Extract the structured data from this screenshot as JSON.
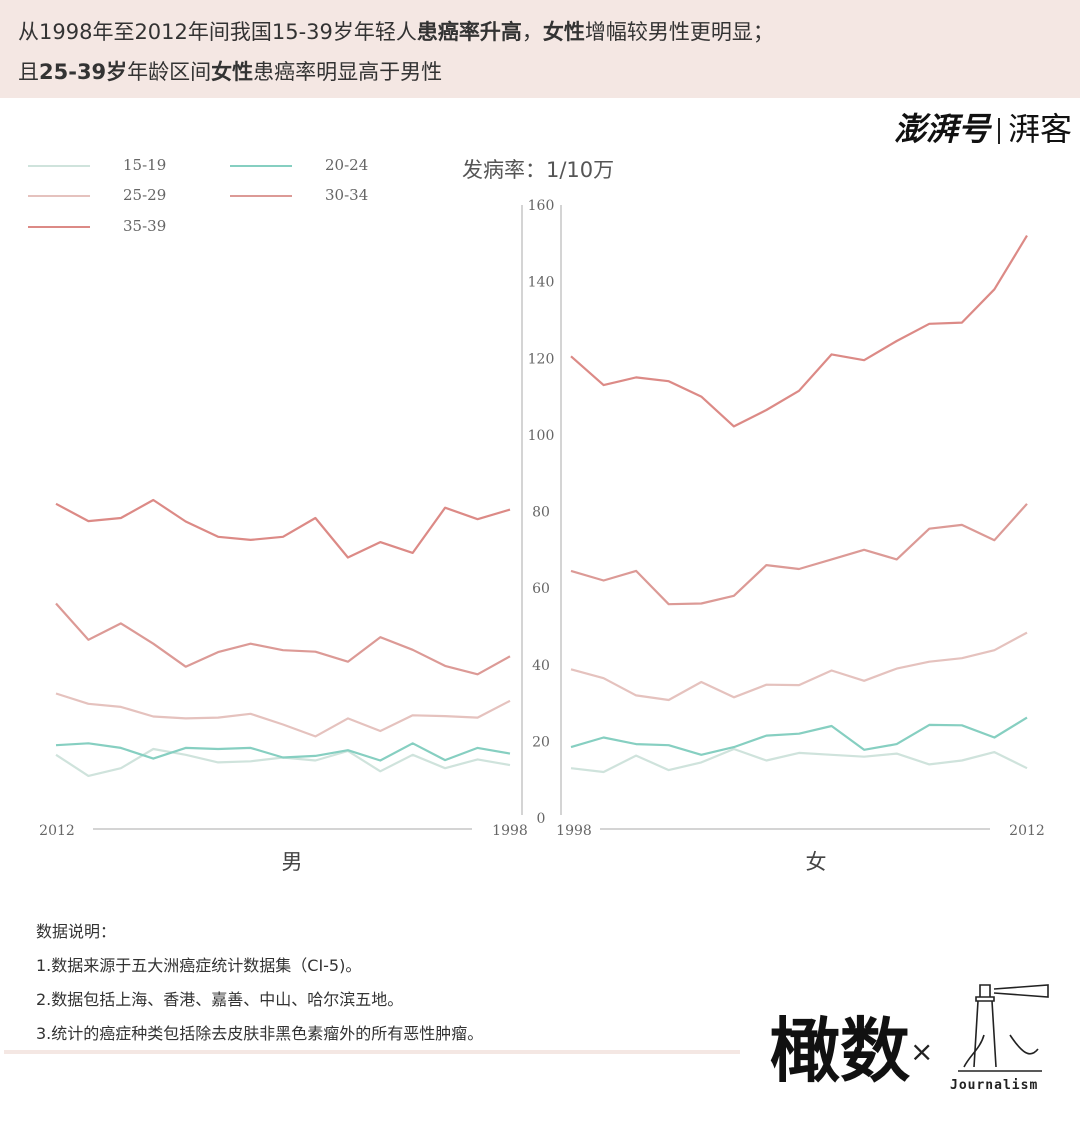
{
  "header": {
    "line1": [
      {
        "text": "从1998年至2012年间我国15-39岁年轻人",
        "bold": false
      },
      {
        "text": "患癌率升高",
        "bold": true
      },
      {
        "text": "，",
        "bold": false
      },
      {
        "text": "女性",
        "bold": true
      },
      {
        "text": "增幅较男性更明显；",
        "bold": false
      }
    ],
    "line2": [
      {
        "text": "且",
        "bold": false
      },
      {
        "text": "25-39岁",
        "bold": true
      },
      {
        "text": "年龄区间",
        "bold": false
      },
      {
        "text": "女性",
        "bold": true
      },
      {
        "text": "患癌率明显高于男性",
        "bold": false
      }
    ]
  },
  "brand": {
    "main": "澎湃号",
    "sub": "湃客"
  },
  "unit_label": "发病率：1/10万",
  "chart_data": {
    "type": "line",
    "y_ticks": [
      0,
      20,
      40,
      60,
      80,
      100,
      120,
      140,
      160
    ],
    "ylim": [
      0,
      160
    ],
    "series_meta": [
      {
        "name": "15-19",
        "color": "#cfe3dc"
      },
      {
        "name": "20-24",
        "color": "#86cfc1"
      },
      {
        "name": "25-29",
        "color": "#e5c2be"
      },
      {
        "name": "30-34",
        "color": "#dc9a96"
      },
      {
        "name": "35-39",
        "color": "#dc8a86"
      }
    ],
    "male": {
      "label": "男",
      "x": [
        2012,
        2011,
        2010,
        2009,
        2008,
        2007,
        2006,
        2005,
        2004,
        2003,
        2002,
        2001,
        2000,
        1999,
        1998
      ],
      "x_labels": [
        "2012",
        "1998"
      ],
      "series": [
        {
          "name": "15-19",
          "values": [
            16.5,
            11,
            13,
            18,
            16.5,
            14.5,
            14.8,
            15.8,
            15,
            17.5,
            12.2,
            16.5,
            13,
            15.3,
            13.8
          ]
        },
        {
          "name": "20-24",
          "values": [
            19,
            19.5,
            18.3,
            15.5,
            18.3,
            18,
            18.3,
            15.8,
            16.2,
            17.7,
            15,
            19.5,
            15.1,
            18.3,
            16.8
          ]
        },
        {
          "name": "25-29",
          "values": [
            32.5,
            29.8,
            29,
            26.5,
            26,
            26.2,
            27.2,
            24.4,
            21.3,
            26,
            22.7,
            26.8,
            26.6,
            26.2,
            30.6
          ]
        },
        {
          "name": "30-34",
          "values": [
            56,
            46.5,
            50.8,
            45.5,
            39.5,
            43.3,
            45.5,
            43.8,
            43.4,
            40.8,
            47.2,
            43.9,
            39.7,
            37.5,
            42.2
          ]
        },
        {
          "name": "35-39",
          "values": [
            82,
            77.5,
            78.3,
            83,
            77.4,
            73.4,
            72.6,
            73.4,
            78.3,
            68,
            72,
            69.2,
            81,
            78,
            80.5
          ]
        }
      ]
    },
    "female": {
      "label": "女",
      "x": [
        1998,
        1999,
        2000,
        2001,
        2002,
        2003,
        2004,
        2005,
        2006,
        2007,
        2008,
        2009,
        2010,
        2011,
        2012
      ],
      "x_labels": [
        "1998",
        "2012"
      ],
      "series": [
        {
          "name": "15-19",
          "values": [
            13,
            12,
            16.3,
            12.5,
            14.5,
            18,
            15,
            17,
            16.5,
            16,
            16.8,
            14,
            15,
            17.2,
            13
          ]
        },
        {
          "name": "20-24",
          "values": [
            18.5,
            21,
            19.3,
            19,
            16.5,
            18.5,
            21.5,
            22,
            24,
            17.8,
            19.3,
            24.3,
            24.2,
            21,
            26.2
          ]
        },
        {
          "name": "25-29",
          "values": [
            38.8,
            36.5,
            32,
            30.8,
            35.5,
            31.5,
            34.8,
            34.7,
            38.5,
            35.8,
            39,
            40.8,
            41.7,
            43.8,
            48.4
          ]
        },
        {
          "name": "30-34",
          "values": [
            64.5,
            62,
            64.5,
            55.8,
            56,
            58,
            66,
            65,
            67.5,
            70,
            67.5,
            75.5,
            76.5,
            72.5,
            82
          ]
        },
        {
          "name": "35-39",
          "values": [
            120.5,
            113,
            115,
            114,
            110,
            102.2,
            106.5,
            111.5,
            121,
            119.5,
            124.5,
            129,
            129.3,
            138,
            152
          ]
        }
      ]
    }
  },
  "notes": {
    "title": "数据说明：",
    "items": [
      "1.数据来源于五大洲癌症统计数据集（CI-5)。",
      "2.数据包括上海、香港、嘉善、中山、哈尔滨五地。",
      "3.统计的癌症种类包括除去皮肤非黑色素瘤外的所有恶性肿瘤。"
    ]
  },
  "logo": {
    "main": "橄数",
    "x": "×",
    "sub": "Journalism"
  }
}
